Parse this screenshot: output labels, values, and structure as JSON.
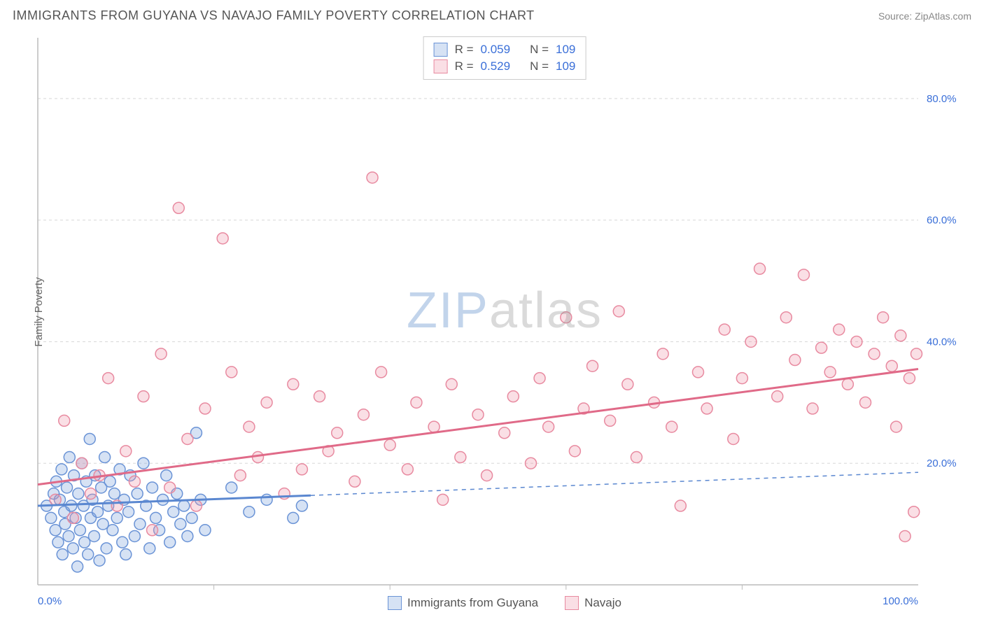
{
  "title": "IMMIGRANTS FROM GUYANA VS NAVAJO FAMILY POVERTY CORRELATION CHART",
  "source": "Source: ZipAtlas.com",
  "ylabel": "Family Poverty",
  "watermark": {
    "part1": "ZIP",
    "part2": "atlas"
  },
  "chart": {
    "type": "scatter",
    "x_domain": [
      0,
      100
    ],
    "y_domain": [
      0,
      90
    ],
    "x_ticks": [
      {
        "v": 0,
        "label": "0.0%"
      },
      {
        "v": 100,
        "label": "100.0%"
      }
    ],
    "y_ticks": [
      {
        "v": 20,
        "label": "20.0%"
      },
      {
        "v": 40,
        "label": "40.0%"
      },
      {
        "v": 60,
        "label": "60.0%"
      },
      {
        "v": 80,
        "label": "80.0%"
      }
    ],
    "y_gridlines": [
      20,
      40,
      60,
      80
    ],
    "x_minor_ticks": [
      20,
      40,
      60,
      80
    ],
    "grid_color": "#d8d8d8",
    "axis_color": "#bbbbbb",
    "background_color": "#ffffff",
    "marker_radius": 8,
    "marker_stroke_width": 1.5,
    "series": [
      {
        "id": "guyana",
        "label": "Immigrants from Guyana",
        "R": "0.059",
        "N": "109",
        "fill": "rgba(120,160,220,0.30)",
        "stroke": "#6a93d6",
        "trend": {
          "solid_from_x": 0,
          "solid_to_x": 31,
          "y_at_0": 13.0,
          "y_at_100": 18.5,
          "stroke": "#5a87d0",
          "width": 3,
          "dash": "6,6"
        },
        "points": [
          [
            1,
            13
          ],
          [
            1.5,
            11
          ],
          [
            1.8,
            15
          ],
          [
            2,
            9
          ],
          [
            2.1,
            17
          ],
          [
            2.3,
            7
          ],
          [
            2.5,
            14
          ],
          [
            2.7,
            19
          ],
          [
            2.8,
            5
          ],
          [
            3,
            12
          ],
          [
            3.1,
            10
          ],
          [
            3.3,
            16
          ],
          [
            3.5,
            8
          ],
          [
            3.6,
            21
          ],
          [
            3.8,
            13
          ],
          [
            4,
            6
          ],
          [
            4.1,
            18
          ],
          [
            4.3,
            11
          ],
          [
            4.5,
            3
          ],
          [
            4.6,
            15
          ],
          [
            4.8,
            9
          ],
          [
            5,
            20
          ],
          [
            5.2,
            13
          ],
          [
            5.3,
            7
          ],
          [
            5.5,
            17
          ],
          [
            5.7,
            5
          ],
          [
            5.9,
            24
          ],
          [
            6,
            11
          ],
          [
            6.2,
            14
          ],
          [
            6.4,
            8
          ],
          [
            6.5,
            18
          ],
          [
            6.8,
            12
          ],
          [
            7,
            4
          ],
          [
            7.2,
            16
          ],
          [
            7.4,
            10
          ],
          [
            7.6,
            21
          ],
          [
            7.8,
            6
          ],
          [
            8,
            13
          ],
          [
            8.2,
            17
          ],
          [
            8.5,
            9
          ],
          [
            8.7,
            15
          ],
          [
            9,
            11
          ],
          [
            9.3,
            19
          ],
          [
            9.6,
            7
          ],
          [
            9.8,
            14
          ],
          [
            10,
            5
          ],
          [
            10.3,
            12
          ],
          [
            10.5,
            18
          ],
          [
            11,
            8
          ],
          [
            11.3,
            15
          ],
          [
            11.6,
            10
          ],
          [
            12,
            20
          ],
          [
            12.3,
            13
          ],
          [
            12.7,
            6
          ],
          [
            13,
            16
          ],
          [
            13.4,
            11
          ],
          [
            13.8,
            9
          ],
          [
            14.2,
            14
          ],
          [
            14.6,
            18
          ],
          [
            15,
            7
          ],
          [
            15.4,
            12
          ],
          [
            15.8,
            15
          ],
          [
            16.2,
            10
          ],
          [
            16.6,
            13
          ],
          [
            17,
            8
          ],
          [
            17.5,
            11
          ],
          [
            18,
            25
          ],
          [
            18.5,
            14
          ],
          [
            19,
            9
          ],
          [
            22,
            16
          ],
          [
            24,
            12
          ],
          [
            26,
            14
          ],
          [
            29,
            11
          ],
          [
            30,
            13
          ]
        ]
      },
      {
        "id": "navajo",
        "label": "Navajo",
        "R": "0.529",
        "N": "109",
        "fill": "rgba(240,150,170,0.30)",
        "stroke": "#e88aa0",
        "trend": {
          "solid_from_x": 0,
          "solid_to_x": 100,
          "y_at_0": 16.5,
          "y_at_100": 35.5,
          "stroke": "#e06a88",
          "width": 3,
          "dash": null
        },
        "points": [
          [
            2,
            14
          ],
          [
            3,
            27
          ],
          [
            4,
            11
          ],
          [
            5,
            20
          ],
          [
            6,
            15
          ],
          [
            7,
            18
          ],
          [
            8,
            34
          ],
          [
            9,
            13
          ],
          [
            10,
            22
          ],
          [
            11,
            17
          ],
          [
            12,
            31
          ],
          [
            13,
            9
          ],
          [
            14,
            38
          ],
          [
            15,
            16
          ],
          [
            16,
            62
          ],
          [
            17,
            24
          ],
          [
            18,
            13
          ],
          [
            19,
            29
          ],
          [
            21,
            57
          ],
          [
            22,
            35
          ],
          [
            23,
            18
          ],
          [
            24,
            26
          ],
          [
            25,
            21
          ],
          [
            26,
            30
          ],
          [
            28,
            15
          ],
          [
            29,
            33
          ],
          [
            30,
            19
          ],
          [
            32,
            31
          ],
          [
            33,
            22
          ],
          [
            34,
            25
          ],
          [
            36,
            17
          ],
          [
            37,
            28
          ],
          [
            38,
            67
          ],
          [
            39,
            35
          ],
          [
            40,
            23
          ],
          [
            42,
            19
          ],
          [
            43,
            30
          ],
          [
            45,
            26
          ],
          [
            46,
            14
          ],
          [
            47,
            33
          ],
          [
            48,
            21
          ],
          [
            50,
            28
          ],
          [
            51,
            18
          ],
          [
            53,
            25
          ],
          [
            54,
            31
          ],
          [
            56,
            20
          ],
          [
            57,
            34
          ],
          [
            58,
            26
          ],
          [
            60,
            44
          ],
          [
            61,
            22
          ],
          [
            62,
            29
          ],
          [
            63,
            36
          ],
          [
            65,
            27
          ],
          [
            66,
            45
          ],
          [
            67,
            33
          ],
          [
            68,
            21
          ],
          [
            70,
            30
          ],
          [
            71,
            38
          ],
          [
            72,
            26
          ],
          [
            73,
            13
          ],
          [
            75,
            35
          ],
          [
            76,
            29
          ],
          [
            78,
            42
          ],
          [
            79,
            24
          ],
          [
            80,
            34
          ],
          [
            81,
            40
          ],
          [
            82,
            52
          ],
          [
            84,
            31
          ],
          [
            85,
            44
          ],
          [
            86,
            37
          ],
          [
            87,
            51
          ],
          [
            88,
            29
          ],
          [
            89,
            39
          ],
          [
            90,
            35
          ],
          [
            91,
            42
          ],
          [
            92,
            33
          ],
          [
            93,
            40
          ],
          [
            94,
            30
          ],
          [
            95,
            38
          ],
          [
            96,
            44
          ],
          [
            97,
            36
          ],
          [
            97.5,
            26
          ],
          [
            98,
            41
          ],
          [
            98.5,
            8
          ],
          [
            99,
            34
          ],
          [
            99.5,
            12
          ],
          [
            99.8,
            38
          ]
        ]
      }
    ]
  },
  "colors": {
    "tick_label": "#3a6fd8",
    "title": "#555555",
    "source": "#888888"
  }
}
